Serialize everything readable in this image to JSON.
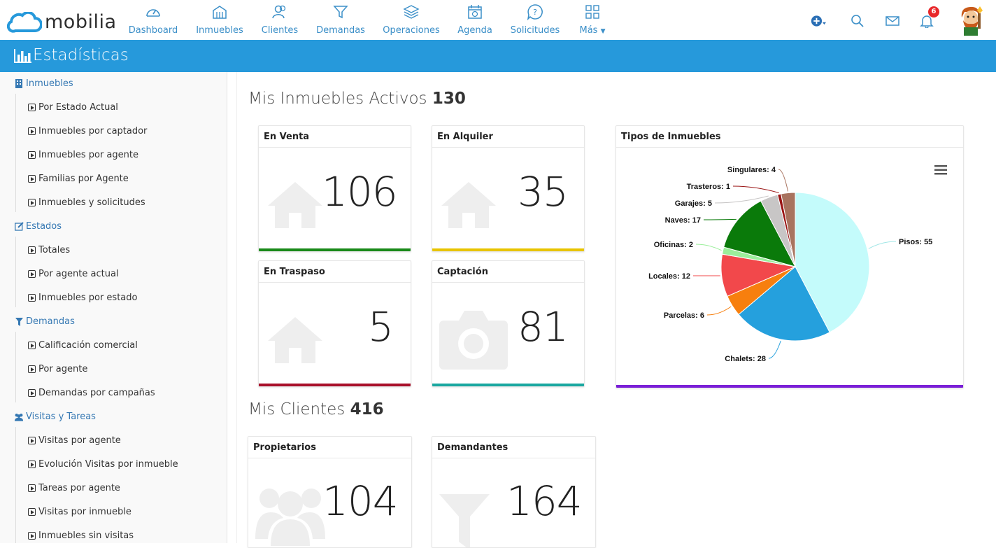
{
  "brand": {
    "name": "mobilia"
  },
  "nav": {
    "items": [
      {
        "label": "Dashboard"
      },
      {
        "label": "Inmuebles"
      },
      {
        "label": "Clientes"
      },
      {
        "label": "Demandas"
      },
      {
        "label": "Operaciones"
      },
      {
        "label": "Agenda"
      },
      {
        "label": "Solicitudes"
      },
      {
        "label": "Más"
      }
    ],
    "notifications_count": "6"
  },
  "header": {
    "title": "Estadísticas"
  },
  "sidebar": {
    "sections": [
      {
        "label": "Inmuebles",
        "items": [
          "Por Estado Actual",
          "Inmuebles por captador",
          "Inmuebles por agente",
          "Familias por Agente",
          "Inmuebles y solicitudes"
        ]
      },
      {
        "label": "Estados",
        "items": [
          "Totales",
          "Por agente actual",
          "Inmuebles por estado"
        ]
      },
      {
        "label": "Demandas",
        "items": [
          "Calificación comercial",
          "Por agente",
          "Demandas por campañas"
        ]
      },
      {
        "label": "Visitas y Tareas",
        "items": [
          "Visitas por agente",
          "Evolución Visitas por inmueble",
          "Tareas por agente",
          "Visitas por inmueble",
          "Inmuebles sin visitas"
        ]
      }
    ]
  },
  "properties": {
    "title": "Mis Inmuebles Activos",
    "total": "130",
    "cards": [
      {
        "title": "En Venta",
        "value": "106",
        "color": "#1a8a1a"
      },
      {
        "title": "En Alquiler",
        "value": "35",
        "color": "#e8c400"
      },
      {
        "title": "En Traspaso",
        "value": "5",
        "color": "#a8102a"
      },
      {
        "title": "Captación",
        "value": "81",
        "color": "#1aa7a0"
      }
    ]
  },
  "clients": {
    "title": "Mis Clientes",
    "total": "416",
    "cards": [
      {
        "title": "Propietarios",
        "value": "104"
      },
      {
        "title": "Demandantes",
        "value": "164"
      }
    ]
  },
  "pie_card": {
    "title": "Tipos de Inmuebles",
    "accent": "#7a1fd6"
  },
  "chart_data": {
    "type": "pie",
    "title": "",
    "slices": [
      {
        "label": "Pisos",
        "value": 55,
        "color": "#c4fbfb"
      },
      {
        "label": "Chalets",
        "value": 28,
        "color": "#25a0dd"
      },
      {
        "label": "Parcelas",
        "value": 6,
        "color": "#f77f0e"
      },
      {
        "label": "Locales",
        "value": 12,
        "color": "#f2484b"
      },
      {
        "label": "Oficinas",
        "value": 2,
        "color": "#9bef9b"
      },
      {
        "label": "Naves",
        "value": 17,
        "color": "#0a7a0a"
      },
      {
        "label": "Garajes",
        "value": 5,
        "color": "#c8c6c6"
      },
      {
        "label": "Trasteros",
        "value": 1,
        "color": "#9a1414"
      },
      {
        "label": "Singulares",
        "value": 4,
        "color": "#a8735f"
      }
    ]
  }
}
